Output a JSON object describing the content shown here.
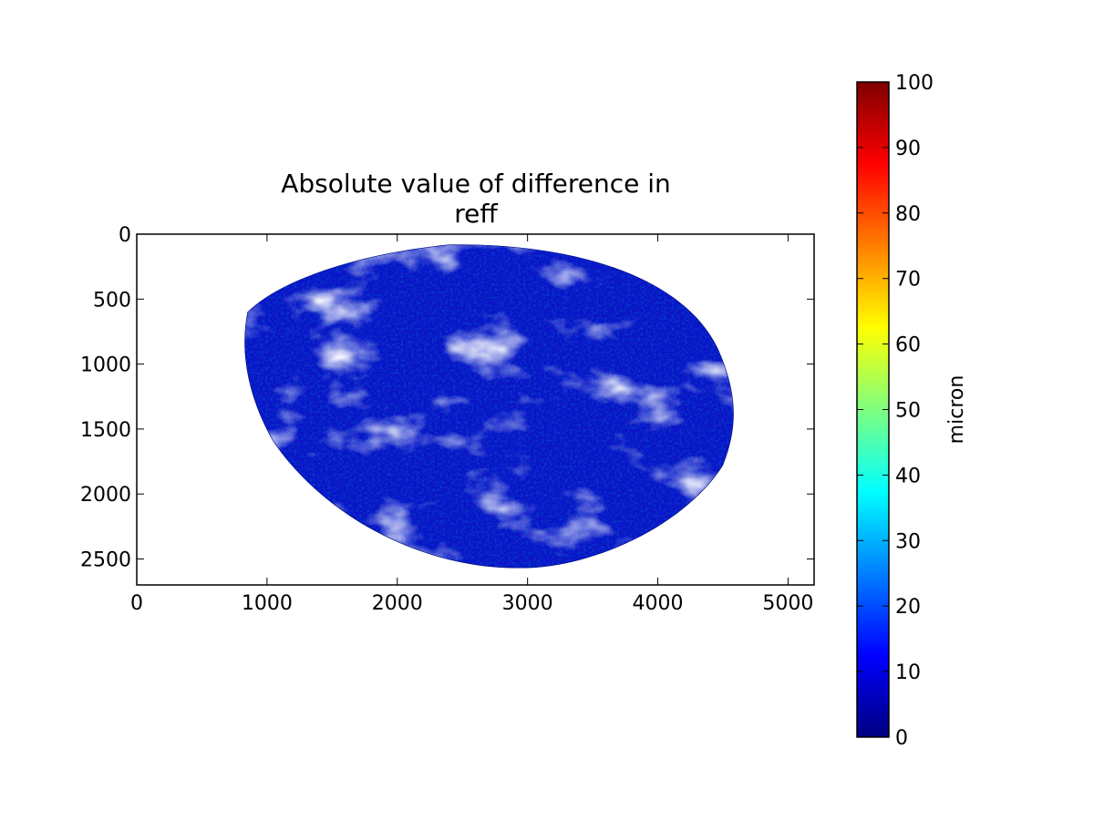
{
  "chart_data": {
    "type": "heatmap",
    "title_lines": [
      "Absolute value of difference in",
      "reff"
    ],
    "xlim": [
      0,
      5200
    ],
    "ylim": [
      2700,
      0
    ],
    "y_inverted": true,
    "x_ticks": [
      0,
      1000,
      2000,
      3000,
      4000,
      5000
    ],
    "y_ticks": [
      0,
      500,
      1000,
      1500,
      2000,
      2500
    ],
    "image": {
      "description_of_field": "Earth disk difference field; missing values shown white",
      "disk_extent_x": [
        790,
        4610
      ],
      "disk_extent_y": [
        80,
        2570
      ],
      "dominant_value_range": [
        0,
        15
      ],
      "missing_color": "#ffffff"
    },
    "colorbar": {
      "label": "micron",
      "vmin": 0,
      "vmax": 100,
      "ticks": [
        0,
        10,
        20,
        30,
        40,
        50,
        60,
        70,
        80,
        90,
        100
      ],
      "colormap": "jet",
      "colors": [
        "#00007f",
        "#0000ff",
        "#007fff",
        "#00ffff",
        "#7fff7f",
        "#ffff00",
        "#ff7f00",
        "#ff0000",
        "#7f0000"
      ]
    },
    "grid": false
  }
}
